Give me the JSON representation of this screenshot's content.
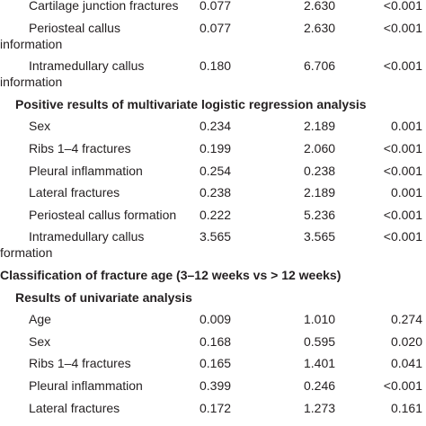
{
  "table": {
    "rows": [
      {
        "label": [
          "Cartilage junction fractures"
        ],
        "cells": [
          "0.077",
          "2.630",
          "<0.001"
        ]
      },
      {
        "label": [
          "Periosteal callus",
          "information"
        ],
        "cells": [
          "0.077",
          "2.630",
          "<0.001"
        ]
      },
      {
        "label": [
          "Intramedullary callus",
          "information"
        ],
        "cells": [
          "0.180",
          "6.706",
          "<0.001"
        ]
      },
      {
        "subsection": "Positive results of multivariate logistic regression analysis"
      },
      {
        "label": [
          "Sex"
        ],
        "cells": [
          "0.234",
          "2.189",
          "0.001"
        ]
      },
      {
        "label": [
          "Ribs 1–4 fractures"
        ],
        "cells": [
          "0.199",
          "2.060",
          "<0.001"
        ]
      },
      {
        "label": [
          "Pleural inflammation"
        ],
        "cells": [
          "0.254",
          "0.238",
          "<0.001"
        ]
      },
      {
        "label": [
          "Lateral fractures"
        ],
        "cells": [
          "0.238",
          "2.189",
          "0.001"
        ]
      },
      {
        "label": [
          "Periosteal callus formation"
        ],
        "cells": [
          "0.222",
          "5.236",
          "<0.001"
        ]
      },
      {
        "label": [
          "Intramedullary callus",
          "formation"
        ],
        "cells": [
          "3.565",
          "3.565",
          "<0.001"
        ]
      },
      {
        "section": "Classification of fracture age (3–12 weeks vs > 12 weeks)"
      },
      {
        "subsection": "Results of univariate analysis"
      },
      {
        "label": [
          "Age"
        ],
        "cells": [
          "0.009",
          "1.010",
          "0.274"
        ]
      },
      {
        "label": [
          "Sex"
        ],
        "cells": [
          "0.168",
          "0.595",
          "0.020"
        ]
      },
      {
        "label": [
          "Ribs 1–4 fractures"
        ],
        "cells": [
          "0.165",
          "1.401",
          "0.041"
        ]
      },
      {
        "label": [
          "Pleural inflammation"
        ],
        "cells": [
          "0.399",
          "0.246",
          "<0.001"
        ]
      },
      {
        "label": [
          "Lateral fractures"
        ],
        "cells": [
          "0.172",
          "1.273",
          "0.161"
        ]
      }
    ]
  }
}
